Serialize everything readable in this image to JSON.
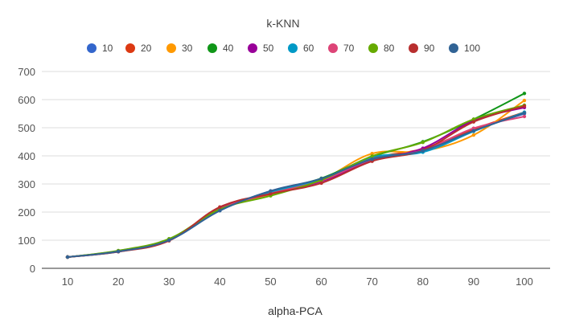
{
  "chart_data": {
    "type": "line",
    "title": "k-KNN",
    "xlabel": "alpha-PCA",
    "ylabel": "",
    "x": [
      10,
      20,
      30,
      40,
      50,
      60,
      70,
      80,
      90,
      100
    ],
    "x_tick_labels": [
      "10",
      "20",
      "30",
      "40",
      "50",
      "60",
      "70",
      "80",
      "90",
      "100"
    ],
    "y_tick_labels": [
      "0",
      "100",
      "200",
      "300",
      "400",
      "500",
      "600",
      "700"
    ],
    "ylim": [
      0,
      700
    ],
    "grid": true,
    "legend_position": "top",
    "smooth": true,
    "series": [
      {
        "name": "10",
        "color": "#3366cc",
        "values": [
          40,
          59,
          100,
          205,
          275,
          318,
          383,
          420,
          492,
          550
        ]
      },
      {
        "name": "20",
        "color": "#dc3912",
        "values": [
          40,
          60,
          101,
          210,
          268,
          311,
          390,
          425,
          495,
          555
        ]
      },
      {
        "name": "30",
        "color": "#ff9900",
        "values": [
          40,
          61,
          103,
          212,
          262,
          315,
          408,
          417,
          474,
          597
        ]
      },
      {
        "name": "40",
        "color": "#109618",
        "values": [
          40,
          62,
          104,
          210,
          270,
          320,
          397,
          450,
          530,
          622
        ]
      },
      {
        "name": "50",
        "color": "#990099",
        "values": [
          40,
          60,
          100,
          214,
          265,
          309,
          382,
          427,
          525,
          572
        ]
      },
      {
        "name": "60",
        "color": "#0099c6",
        "values": [
          40,
          60,
          101,
          206,
          270,
          316,
          395,
          413,
          487,
          555
        ]
      },
      {
        "name": "70",
        "color": "#dd4477",
        "values": [
          40,
          61,
          102,
          211,
          266,
          312,
          387,
          420,
          498,
          540
        ]
      },
      {
        "name": "80",
        "color": "#66aa00",
        "values": [
          40,
          63,
          105,
          210,
          258,
          314,
          399,
          448,
          530,
          580
        ]
      },
      {
        "name": "90",
        "color": "#b82e2e",
        "values": [
          40,
          59,
          98,
          218,
          265,
          303,
          381,
          420,
          521,
          577
        ]
      },
      {
        "name": "100",
        "color": "#316395",
        "values": [
          40,
          60,
          100,
          205,
          275,
          319,
          388,
          418,
          489,
          552
        ]
      }
    ]
  }
}
